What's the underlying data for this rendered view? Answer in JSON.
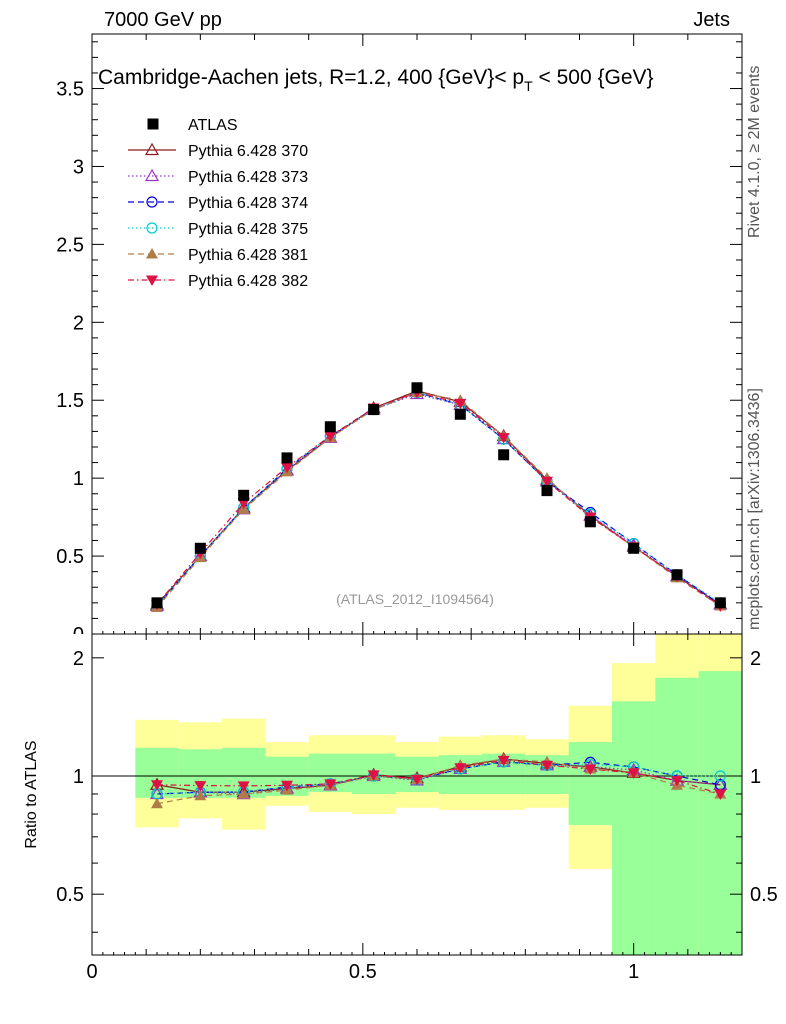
{
  "header": {
    "left": "7000 GeV pp",
    "right": "Jets"
  },
  "side_labels": {
    "rivet": "Rivet 4.1.0, ≥ 2M events",
    "mcplots": "mcplots.cern.ch [arXiv:1306.3436]"
  },
  "chart_data": {
    "type": "line",
    "title": "Cambridge-Aachen jets, R=1.2,  400 {GeV}< p_T < 500 {GeV}",
    "title_parts": {
      "main": "Cambridge-Aachen jets, R=1.2,  400 {GeV}< p",
      "sub": "T",
      "tail": " < 500 {GeV}"
    },
    "watermark": "(ATLAS_2012_I1094564)",
    "xlim": [
      0,
      1.2
    ],
    "main_ylim": [
      0,
      3.85
    ],
    "ratio_ylim": [
      0.35,
      2.3
    ],
    "xticks": [
      0,
      0.5,
      1
    ],
    "xtick_labels": [
      "0",
      "0.5",
      "1"
    ],
    "main_yticks": [
      0,
      0.5,
      1,
      1.5,
      2,
      2.5,
      3,
      3.5
    ],
    "main_ytick_labels": [
      "0",
      "0.5",
      "1",
      "1.5",
      "2",
      "2.5",
      "3",
      "3.5"
    ],
    "ratio_yticks": [
      0.5,
      1,
      2
    ],
    "ratio_ytick_labels": [
      "0.5",
      "1",
      "2"
    ],
    "ratio_ylabel": "Ratio to ATLAS",
    "x": [
      0.12,
      0.2,
      0.28,
      0.36,
      0.44,
      0.52,
      0.6,
      0.68,
      0.76,
      0.84,
      0.92,
      1.0,
      1.08,
      1.16
    ],
    "data": {
      "name": "ATLAS",
      "values": [
        0.2,
        0.55,
        0.89,
        1.13,
        1.33,
        1.44,
        1.58,
        1.41,
        1.15,
        0.92,
        0.72,
        0.55,
        0.38,
        0.2
      ]
    },
    "series": [
      {
        "name": "Pythia 6.428 370",
        "color": "#8b1a1a",
        "dash": "",
        "marker": "triangle-open",
        "values": [
          0.19,
          0.5,
          0.81,
          1.05,
          1.26,
          1.45,
          1.56,
          1.49,
          1.27,
          0.99,
          0.76,
          0.56,
          0.37,
          0.19
        ]
      },
      {
        "name": "Pythia 6.428 373",
        "color": "#9933cc",
        "dash": "1.5,2.5",
        "marker": "triangle-open",
        "values": [
          0.18,
          0.5,
          0.8,
          1.05,
          1.26,
          1.44,
          1.54,
          1.47,
          1.25,
          0.98,
          0.76,
          0.57,
          0.37,
          0.19
        ]
      },
      {
        "name": "Pythia 6.428 374",
        "color": "#0000dd",
        "dash": "6,4",
        "marker": "circle-open",
        "values": [
          0.18,
          0.5,
          0.81,
          1.06,
          1.27,
          1.44,
          1.55,
          1.47,
          1.25,
          0.98,
          0.78,
          0.58,
          0.38,
          0.19
        ]
      },
      {
        "name": "Pythia 6.428 375",
        "color": "#00cccc",
        "dash": "1.5,2.5",
        "marker": "circle-open",
        "values": [
          0.18,
          0.5,
          0.81,
          1.06,
          1.27,
          1.44,
          1.55,
          1.47,
          1.25,
          0.98,
          0.77,
          0.58,
          0.38,
          0.2
        ]
      },
      {
        "name": "Pythia 6.428 381",
        "color": "#b07d48",
        "dash": "6,4",
        "marker": "triangle-filled",
        "values": [
          0.17,
          0.49,
          0.8,
          1.04,
          1.26,
          1.44,
          1.55,
          1.5,
          1.27,
          1.0,
          0.75,
          0.56,
          0.36,
          0.18
        ]
      },
      {
        "name": "Pythia 6.428 382",
        "color": "#dd1144",
        "dash": "6,3,1.5,3",
        "marker": "triangle-down-filled",
        "values": [
          0.19,
          0.52,
          0.84,
          1.07,
          1.27,
          1.45,
          1.55,
          1.48,
          1.26,
          0.98,
          0.75,
          0.56,
          0.37,
          0.18
        ]
      }
    ],
    "bin_edges": [
      0.08,
      0.16,
      0.24,
      0.32,
      0.4,
      0.48,
      0.56,
      0.64,
      0.72,
      0.8,
      0.88,
      0.96,
      1.04,
      1.12,
      1.2
    ],
    "band_green": [
      [
        0.88,
        1.18
      ],
      [
        0.88,
        1.17
      ],
      [
        0.88,
        1.18
      ],
      [
        0.89,
        1.12
      ],
      [
        0.91,
        1.14
      ],
      [
        0.9,
        1.14
      ],
      [
        0.91,
        1.12
      ],
      [
        0.9,
        1.13
      ],
      [
        0.9,
        1.14
      ],
      [
        0.9,
        1.13
      ],
      [
        0.75,
        1.22
      ],
      [
        0.35,
        1.55
      ],
      [
        0.35,
        1.78
      ],
      [
        0.35,
        1.85
      ]
    ],
    "band_yellow": [
      [
        0.74,
        1.39
      ],
      [
        0.78,
        1.37
      ],
      [
        0.73,
        1.4
      ],
      [
        0.84,
        1.22
      ],
      [
        0.81,
        1.27
      ],
      [
        0.8,
        1.27
      ],
      [
        0.83,
        1.22
      ],
      [
        0.82,
        1.26
      ],
      [
        0.82,
        1.27
      ],
      [
        0.83,
        1.24
      ],
      [
        0.58,
        1.51
      ],
      [
        0.54,
        1.94
      ],
      [
        0.35,
        2.3
      ],
      [
        0.35,
        2.3
      ]
    ]
  }
}
